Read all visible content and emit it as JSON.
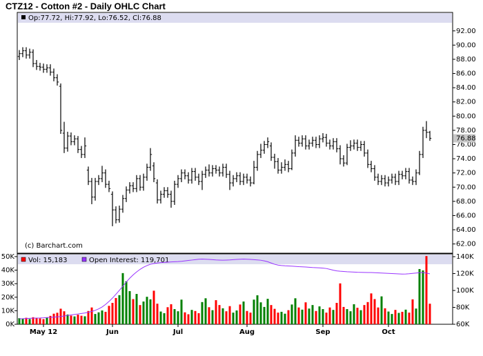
{
  "chart_data": {
    "type": "ohlc",
    "title": "CTZ12 - Cotton #2 - Daily OHLC Chart",
    "readout": "Op:77.72, Hi:77.92, Lo:76.52, Cl:76.88",
    "credit": "(c) Barchart.com",
    "categories": [
      null,
      null,
      null,
      null,
      null,
      null,
      null,
      "May 12",
      null,
      null,
      null,
      null,
      null,
      null,
      null,
      null,
      null,
      null,
      null,
      null,
      null,
      null,
      null,
      null,
      null,
      null,
      null,
      "Jun",
      null,
      null,
      null,
      null,
      null,
      null,
      null,
      null,
      null,
      null,
      null,
      null,
      null,
      null,
      null,
      null,
      null,
      null,
      "Jul",
      null,
      null,
      null,
      null,
      null,
      null,
      null,
      null,
      null,
      null,
      null,
      null,
      null,
      null,
      null,
      null,
      null,
      null,
      null,
      "Aug",
      null,
      null,
      null,
      null,
      null,
      null,
      null,
      null,
      null,
      null,
      null,
      null,
      null,
      null,
      null,
      null,
      null,
      null,
      null,
      null,
      null,
      "Sep",
      null,
      null,
      null,
      null,
      null,
      null,
      null,
      null,
      null,
      null,
      null,
      null,
      null,
      null,
      null,
      null,
      null,
      null,
      "Oct",
      null,
      null,
      null,
      null,
      null,
      null,
      null,
      null,
      null,
      null,
      null,
      null
    ],
    "open": [
      88.4,
      88.8,
      89.2,
      88.6,
      89.0,
      87.4,
      87.0,
      86.9,
      86.6,
      86.8,
      86.2,
      85.4,
      84.2,
      77.6,
      75.5,
      77.2,
      76.4,
      76.8,
      75.3,
      74.6,
      72.4,
      70.8,
      68.6,
      70.8,
      71.2,
      72.0,
      70.4,
      69.0,
      66.8,
      65.4,
      66.9,
      68.4,
      69.6,
      70.2,
      69.8,
      71.2,
      70.0,
      71.4,
      72.8,
      73.0,
      70.6,
      68.2,
      69.0,
      69.5,
      69.0,
      68.0,
      70.4,
      71.2,
      72.0,
      71.6,
      71.0,
      72.2,
      71.4,
      70.8,
      71.8,
      72.4,
      72.0,
      72.6,
      72.4,
      72.0,
      72.8,
      71.8,
      70.6,
      71.2,
      71.6,
      70.8,
      71.4,
      71.0,
      70.6,
      72.8,
      74.6,
      75.2,
      76.0,
      75.8,
      74.2,
      73.6,
      72.4,
      72.8,
      73.2,
      72.6,
      74.8,
      76.6,
      76.2,
      76.8,
      75.8,
      76.2,
      76.6,
      76.0,
      76.8,
      77.0,
      76.2,
      75.8,
      76.4,
      75.4,
      74.0,
      73.4,
      75.6,
      75.8,
      76.2,
      75.6,
      76.0,
      74.8,
      73.2,
      72.6,
      71.4,
      70.8,
      71.2,
      70.6,
      71.0,
      71.4,
      70.8,
      71.8,
      71.6,
      72.2,
      71.0,
      70.8,
      72.0,
      74.6,
      78.0,
      77.72
    ],
    "high": [
      89.3,
      89.7,
      89.7,
      89.5,
      89.4,
      87.9,
      87.5,
      87.4,
      87.3,
      87.3,
      86.7,
      85.9,
      84.6,
      79.2,
      77.8,
      77.7,
      77.3,
      77.2,
      75.8,
      77.0,
      72.9,
      71.3,
      71.3,
      71.7,
      73.0,
      72.5,
      70.9,
      69.4,
      67.3,
      67.4,
      68.9,
      70.1,
      70.7,
      70.7,
      71.7,
      71.7,
      71.9,
      73.3,
      75.5,
      73.5,
      71.1,
      69.5,
      70.0,
      70.0,
      69.5,
      70.9,
      71.7,
      72.5,
      72.5,
      72.1,
      72.7,
      72.7,
      71.9,
      72.3,
      72.9,
      73.2,
      73.1,
      73.1,
      72.9,
      73.3,
      73.3,
      72.3,
      71.7,
      72.1,
      72.1,
      71.9,
      71.9,
      71.5,
      73.7,
      75.1,
      76.1,
      76.5,
      77.0,
      76.3,
      74.7,
      74.1,
      73.5,
      73.9,
      73.7,
      75.3,
      77.3,
      77.1,
      77.3,
      77.3,
      76.7,
      77.1,
      77.1,
      77.3,
      77.6,
      77.5,
      76.7,
      76.9,
      76.9,
      75.9,
      74.5,
      76.1,
      76.6,
      76.7,
      76.7,
      76.5,
      76.5,
      75.3,
      73.7,
      73.1,
      71.9,
      71.7,
      71.7,
      71.5,
      71.9,
      71.9,
      72.3,
      72.3,
      72.7,
      72.7,
      71.5,
      72.5,
      75.1,
      78.5,
      79.3,
      77.92
    ],
    "low": [
      87.9,
      88.3,
      88.1,
      88.1,
      86.9,
      86.5,
      86.4,
      86.1,
      86.1,
      85.7,
      84.9,
      84.3,
      77.5,
      74.8,
      75.0,
      75.9,
      75.9,
      74.8,
      74.1,
      74.1,
      70.3,
      67.6,
      68.1,
      70.3,
      70.7,
      69.9,
      69.3,
      64.5,
      64.9,
      65.0,
      66.4,
      67.9,
      69.1,
      69.3,
      69.3,
      69.5,
      69.5,
      70.9,
      72.3,
      70.7,
      67.7,
      67.7,
      68.5,
      68.5,
      67.1,
      67.5,
      69.9,
      70.7,
      71.1,
      70.5,
      70.5,
      70.9,
      70.3,
      69.6,
      71.3,
      71.5,
      71.5,
      71.9,
      71.5,
      71.5,
      71.3,
      69.6,
      70.1,
      70.7,
      70.3,
      70.3,
      70.5,
      70.1,
      70.4,
      72.3,
      74.1,
      74.7,
      75.5,
      73.7,
      72.6,
      71.9,
      71.9,
      72.3,
      72.1,
      72.4,
      74.3,
      75.7,
      75.7,
      75.3,
      75.3,
      75.7,
      75.5,
      75.5,
      76.3,
      75.7,
      75.3,
      75.3,
      74.9,
      73.2,
      72.9,
      73.1,
      75.1,
      75.3,
      75.1,
      75.1,
      74.3,
      72.7,
      72.1,
      70.9,
      70.3,
      70.3,
      70.1,
      70.1,
      70.5,
      70.3,
      70.3,
      71.1,
      71.1,
      70.5,
      70.3,
      70.3,
      71.7,
      74.1,
      76.9,
      76.52
    ],
    "close": [
      88.8,
      89.2,
      88.6,
      89.0,
      87.4,
      87.0,
      86.9,
      86.6,
      86.8,
      86.2,
      85.4,
      84.8,
      78.0,
      75.5,
      77.2,
      76.4,
      76.8,
      75.3,
      74.6,
      75.8,
      70.8,
      68.6,
      70.8,
      71.2,
      72.0,
      70.4,
      69.8,
      66.8,
      65.4,
      66.9,
      68.4,
      69.6,
      70.2,
      69.8,
      71.2,
      70.0,
      71.4,
      72.8,
      74.6,
      71.2,
      68.2,
      69.0,
      69.5,
      69.0,
      68.0,
      70.4,
      71.2,
      72.0,
      71.6,
      71.0,
      72.2,
      71.4,
      70.8,
      71.8,
      72.4,
      72.0,
      72.6,
      72.4,
      72.0,
      72.8,
      71.8,
      70.6,
      71.2,
      71.6,
      70.8,
      71.4,
      71.0,
      70.6,
      72.8,
      74.6,
      75.2,
      76.0,
      76.4,
      74.2,
      73.6,
      72.4,
      72.8,
      73.2,
      72.6,
      74.8,
      76.6,
      76.2,
      76.8,
      75.8,
      76.2,
      76.6,
      76.0,
      76.8,
      77.0,
      76.2,
      75.8,
      76.4,
      75.4,
      74.0,
      73.4,
      75.6,
      75.8,
      76.2,
      75.6,
      76.0,
      74.8,
      73.2,
      72.6,
      71.4,
      70.8,
      71.2,
      70.6,
      71.0,
      71.4,
      70.8,
      71.8,
      71.6,
      72.2,
      71.0,
      70.8,
      72.0,
      74.6,
      78.0,
      77.72,
      76.88
    ],
    "bar_color": "#000000",
    "ylim": [
      60.7,
      94.6
    ],
    "yticks": [
      {
        "value": 62,
        "label": "62.00"
      },
      {
        "value": 64,
        "label": "64.00"
      },
      {
        "value": 66,
        "label": "66.00"
      },
      {
        "value": 68,
        "label": "68.00"
      },
      {
        "value": 70,
        "label": "70.00"
      },
      {
        "value": 72,
        "label": "72.00"
      },
      {
        "value": 74,
        "label": "74.00"
      },
      {
        "value": 76,
        "label": "76.00"
      },
      {
        "value": 78,
        "label": "78.00"
      },
      {
        "value": 80,
        "label": "80.00"
      },
      {
        "value": 82,
        "label": "82.00"
      },
      {
        "value": 84,
        "label": "84.00"
      },
      {
        "value": 86,
        "label": "86.00"
      },
      {
        "value": 88,
        "label": "88.00"
      },
      {
        "value": 90,
        "label": "90.00"
      },
      {
        "value": 92,
        "label": "92.00"
      }
    ],
    "last_price": {
      "value": 76.88,
      "label": "76.88"
    },
    "volume": {
      "type": "bar",
      "name": "Vol: 15,183",
      "up_color": "#008000",
      "down_color": "#ff0000",
      "values": [
        4500,
        4200,
        4800,
        3900,
        5200,
        4600,
        4300,
        3800,
        5100,
        6200,
        7800,
        8500,
        11500,
        9600,
        7200,
        6400,
        5800,
        7100,
        6300,
        5900,
        9800,
        12400,
        7600,
        8800,
        10200,
        9200,
        13600,
        15800,
        19400,
        21500,
        37800,
        31800,
        24500,
        18600,
        22400,
        14200,
        16800,
        20300,
        18400,
        24800,
        15200,
        9400,
        8200,
        12600,
        14800,
        11200,
        9600,
        18200,
        8800,
        7400,
        10600,
        9800,
        8200,
        16400,
        19200,
        12600,
        10400,
        17800,
        14200,
        11800,
        9600,
        13400,
        8600,
        10200,
        14600,
        16800,
        9800,
        8600,
        18200,
        21400,
        16200,
        12800,
        18800,
        14200,
        11400,
        8600,
        9200,
        7800,
        10400,
        14600,
        19200,
        12400,
        10800,
        16200,
        11600,
        14200,
        9800,
        13200,
        11200,
        8600,
        12400,
        10600,
        15800,
        30200,
        12800,
        11200,
        9600,
        14800,
        12200,
        10400,
        14200,
        16400,
        22800,
        18600,
        12400,
        20600,
        11800,
        9400,
        7600,
        10600,
        8400,
        9200,
        10800,
        8600,
        18400,
        11600,
        40800,
        39800,
        50400,
        15183
      ],
      "ylim": [
        0,
        52000
      ],
      "yticks": [
        {
          "value": 0,
          "label": "0K"
        },
        {
          "value": 10000,
          "label": "10K"
        },
        {
          "value": 20000,
          "label": "20K"
        },
        {
          "value": 30000,
          "label": "30K"
        },
        {
          "value": 40000,
          "label": "40K"
        },
        {
          "value": 50000,
          "label": "50K"
        }
      ]
    },
    "open_interest": {
      "type": "line",
      "name": "Open Interest: 119,701",
      "color": "#9933ff",
      "axis": "y2",
      "values": [
        66500,
        66600,
        66800,
        67000,
        67200,
        67400,
        67500,
        67700,
        68000,
        68200,
        68500,
        68800,
        69200,
        69800,
        70400,
        71000,
        71600,
        72200,
        72800,
        73400,
        74200,
        75200,
        76500,
        78200,
        80500,
        83500,
        87000,
        91000,
        95500,
        100200,
        105000,
        110000,
        114500,
        118500,
        122000,
        125000,
        127500,
        129500,
        131000,
        132000,
        132500,
        133000,
        133200,
        133500,
        133800,
        134000,
        134200,
        134500,
        135000,
        135500,
        136000,
        136500,
        137000,
        137200,
        137000,
        136800,
        136500,
        136200,
        136000,
        135800,
        136000,
        136200,
        136500,
        136800,
        137000,
        137200,
        137000,
        136800,
        136500,
        136200,
        135800,
        135000,
        134000,
        132500,
        131000,
        130000,
        129500,
        129200,
        129000,
        128800,
        128500,
        128200,
        128000,
        127800,
        127500,
        127200,
        127000,
        126800,
        126500,
        126000,
        125000,
        124000,
        123200,
        122800,
        122500,
        122200,
        122000,
        121800,
        121600,
        121500,
        121400,
        121300,
        121200,
        121000,
        120800,
        120600,
        120400,
        120200,
        120000,
        119800,
        119600,
        119400,
        119500,
        119800,
        120200,
        120600,
        121000,
        121200,
        120500,
        119701
      ],
      "y2lim": [
        60000,
        143300
      ],
      "y2ticks": [
        {
          "value": 60000,
          "label": "60K"
        },
        {
          "value": 80000,
          "label": "80K"
        },
        {
          "value": 100000,
          "label": "100K"
        },
        {
          "value": 120000,
          "label": "120K"
        },
        {
          "value": 140000,
          "label": "140K"
        }
      ]
    }
  }
}
